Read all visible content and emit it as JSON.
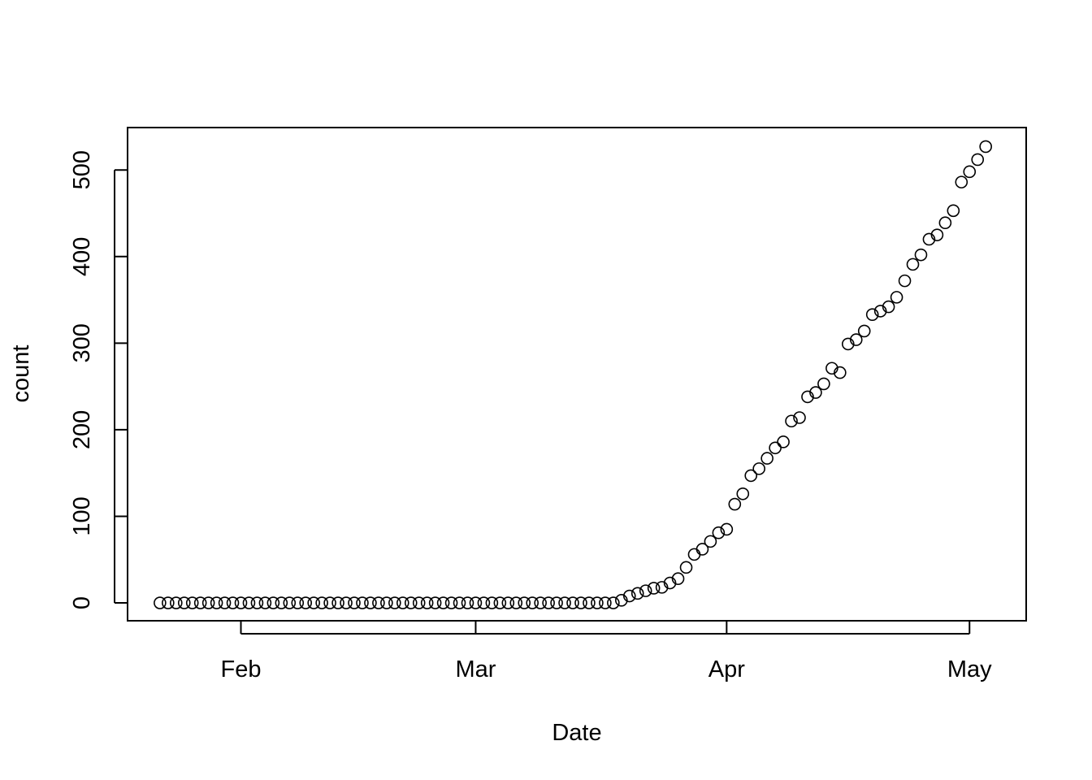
{
  "chart_data": {
    "type": "scatter",
    "title": "",
    "xlabel": "Date",
    "ylabel": "count",
    "x_start": "2020-01-22",
    "x_ticks": [
      {
        "date": "2020-02-01",
        "label": "Feb"
      },
      {
        "date": "2020-03-01",
        "label": "Mar"
      },
      {
        "date": "2020-04-01",
        "label": "Apr"
      },
      {
        "date": "2020-05-01",
        "label": "May"
      }
    ],
    "y_ticks": [
      0,
      100,
      200,
      300,
      400,
      500
    ],
    "xlim": [
      "2020-01-18",
      "2020-05-08"
    ],
    "ylim": [
      -20.6,
      549
    ],
    "grid": false,
    "marker": "open-circle",
    "colors": {
      "points": "#000000",
      "axes": "#000000",
      "background": "#ffffff"
    },
    "series": [
      {
        "values": [
          0,
          0,
          0,
          0,
          0,
          0,
          0,
          0,
          0,
          0,
          0,
          0,
          0,
          0,
          0,
          0,
          0,
          0,
          0,
          0,
          0,
          0,
          0,
          0,
          0,
          0,
          0,
          0,
          0,
          0,
          0,
          0,
          0,
          0,
          0,
          0,
          0,
          0,
          0,
          0,
          0,
          0,
          0,
          0,
          0,
          0,
          0,
          0,
          0,
          0,
          0,
          0,
          0,
          0,
          0,
          0,
          0,
          3,
          8,
          11,
          14,
          17,
          18,
          23,
          28,
          41,
          56,
          62,
          71,
          81,
          85,
          114,
          126,
          147,
          155,
          167,
          179,
          186,
          210,
          214,
          238,
          243,
          253,
          271,
          266,
          299,
          304,
          314,
          333,
          337,
          342,
          353,
          372,
          391,
          402,
          420,
          425,
          439,
          453,
          486,
          498,
          512,
          527
        ]
      }
    ]
  }
}
